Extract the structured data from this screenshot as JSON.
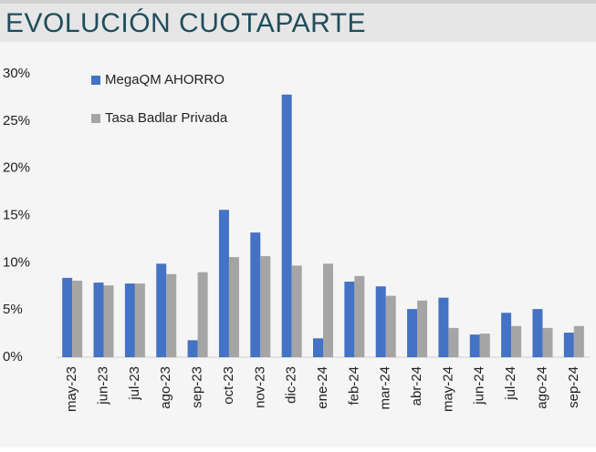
{
  "chart_data": {
    "type": "bar",
    "title": "EVOLUCIÓN CUOTAPARTE",
    "categories": [
      "may-23",
      "jun-23",
      "jul-23",
      "ago-23",
      "sep-23",
      "oct-23",
      "nov-23",
      "dic-23",
      "ene-24",
      "feb-24",
      "mar-24",
      "abr-24",
      "may-24",
      "jun-24",
      "jul-24",
      "ago-24",
      "sep-24"
    ],
    "series": [
      {
        "name": "MegaQM AHORRO",
        "color": "#4472c4",
        "values": [
          8.4,
          7.9,
          7.8,
          9.9,
          1.8,
          15.6,
          13.2,
          27.8,
          2.0,
          8.0,
          7.5,
          5.1,
          6.3,
          2.4,
          4.7,
          5.1,
          2.6
        ]
      },
      {
        "name": "Tasa Badlar Privada",
        "color": "#a5a5a5",
        "values": [
          8.1,
          7.6,
          7.8,
          8.8,
          9.0,
          10.6,
          10.7,
          9.7,
          9.9,
          8.6,
          6.5,
          6.0,
          3.1,
          2.5,
          3.3,
          3.1,
          3.3
        ]
      }
    ],
    "ylim": [
      0,
      30
    ],
    "yticks": [
      {
        "value": 0,
        "label": "0%"
      },
      {
        "value": 5,
        "label": "5%"
      },
      {
        "value": 10,
        "label": "10%"
      },
      {
        "value": 15,
        "label": "15%"
      },
      {
        "value": 20,
        "label": "20%"
      },
      {
        "value": 25,
        "label": "25%"
      },
      {
        "value": 30,
        "label": "30%"
      }
    ],
    "legend": "top-left"
  }
}
